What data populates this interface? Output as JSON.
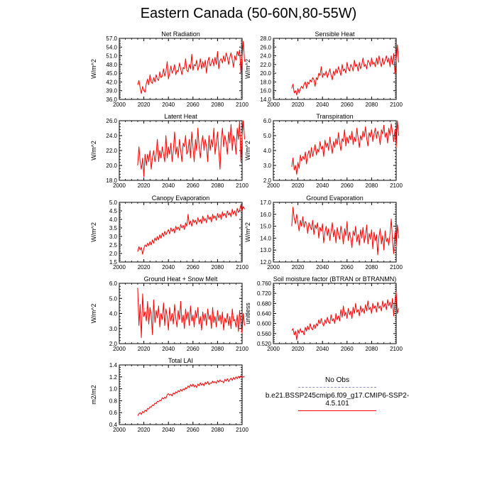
{
  "title": "Eastern Canada (50-60N,80-55W)",
  "legend": {
    "obs_label": "No Obs",
    "model_label": "b.e21.BSSP245cmip6.f09_g17.CMIP6-SSP2-4.5.101",
    "obs_color": "#8e8ecf",
    "model_color": "#ff0000"
  },
  "chart_data": [
    {
      "type": "line",
      "title": "Net Radiation",
      "ylabel": "W/m^2",
      "xlim": [
        2000,
        2100
      ],
      "ylim": [
        36.0,
        57.0
      ],
      "x_ticks": [
        2000,
        2020,
        2040,
        2060,
        2080,
        2100
      ],
      "y_ticks": [
        "36.0",
        "39.0",
        "42.0",
        "45.0",
        "48.0",
        "51.0",
        "54.0",
        "57.0"
      ],
      "series": [
        {
          "color": "#ff0000",
          "x_start": 2015,
          "values": [
            41.0,
            42.5,
            40.0,
            38.0,
            40.5,
            39.0,
            38.5,
            41.5,
            43.0,
            41.0,
            44.5,
            42.0,
            41.5,
            43.5,
            42.0,
            44.5,
            43.0,
            42.5,
            45.5,
            43.5,
            44.0,
            46.5,
            44.0,
            45.5,
            49.0,
            43.0,
            45.0,
            47.5,
            45.0,
            46.0,
            48.0,
            44.5,
            46.0,
            45.5,
            48.5,
            46.5,
            44.5,
            47.0,
            46.5,
            50.0,
            46.0,
            45.5,
            48.0,
            46.5,
            51.5,
            46.0,
            48.0,
            47.5,
            49.5,
            46.0,
            47.5,
            50.0,
            46.5,
            49.0,
            47.0,
            49.5,
            45.0,
            49.0,
            50.5,
            47.5,
            48.5,
            50.0,
            47.5,
            50.5,
            48.0,
            52.5,
            46.5,
            49.5,
            50.0,
            48.5,
            51.0,
            49.0,
            52.0,
            50.5,
            48.0,
            50.5,
            52.0,
            49.5,
            47.0,
            51.0,
            49.5,
            52.5,
            51.0,
            53.0,
            45.0,
            50.5,
            56.0,
            49.0
          ]
        }
      ]
    },
    {
      "type": "line",
      "title": "Sensible Heat",
      "ylabel": "W/m^2",
      "xlim": [
        2000,
        2100
      ],
      "ylim": [
        14.0,
        28.0
      ],
      "x_ticks": [
        2000,
        2020,
        2040,
        2060,
        2080,
        2100
      ],
      "y_ticks": [
        "14.0",
        "16.0",
        "18.0",
        "20.0",
        "22.0",
        "24.0",
        "26.0",
        "28.0"
      ],
      "series": [
        {
          "color": "#ff0000",
          "x_start": 2015,
          "values": [
            16.5,
            17.5,
            15.5,
            16.0,
            15.0,
            16.5,
            15.5,
            16.5,
            17.0,
            16.5,
            17.5,
            18.0,
            16.5,
            18.0,
            17.5,
            18.5,
            18.0,
            19.0,
            18.5,
            17.0,
            19.0,
            18.5,
            20.0,
            19.5,
            21.5,
            19.0,
            20.0,
            19.5,
            20.5,
            19.0,
            20.0,
            21.0,
            19.5,
            18.5,
            20.5,
            19.5,
            21.0,
            20.0,
            21.5,
            20.5,
            19.5,
            22.0,
            20.5,
            21.0,
            20.0,
            22.5,
            21.0,
            20.5,
            22.0,
            21.5,
            20.5,
            23.0,
            21.5,
            22.0,
            20.5,
            22.5,
            21.0,
            22.0,
            23.5,
            21.5,
            22.0,
            21.0,
            23.0,
            22.5,
            21.5,
            23.5,
            22.0,
            22.5,
            21.5,
            23.5,
            22.0,
            24.0,
            22.5,
            21.5,
            23.5,
            22.0,
            23.0,
            24.0,
            22.5,
            23.5,
            21.5,
            24.0,
            22.0,
            24.5,
            20.0,
            23.0,
            26.5,
            22.5
          ]
        }
      ]
    },
    {
      "type": "line",
      "title": "Latent Heat",
      "ylabel": "W/m^2",
      "xlim": [
        2000,
        2100
      ],
      "ylim": [
        18.0,
        26.0
      ],
      "x_ticks": [
        2000,
        2020,
        2040,
        2060,
        2080,
        2100
      ],
      "y_ticks": [
        "18.0",
        "20.0",
        "22.0",
        "24.0",
        "26.0"
      ],
      "series": [
        {
          "color": "#ff0000",
          "x_start": 2015,
          "values": [
            20.0,
            22.5,
            20.5,
            19.5,
            21.0,
            18.5,
            21.5,
            20.0,
            21.5,
            20.5,
            22.0,
            19.5,
            21.0,
            22.0,
            20.5,
            21.5,
            23.5,
            20.5,
            22.0,
            21.0,
            22.5,
            21.5,
            20.5,
            24.0,
            21.0,
            22.5,
            21.5,
            23.0,
            20.5,
            22.0,
            24.5,
            21.5,
            22.5,
            21.0,
            23.5,
            22.0,
            20.5,
            23.0,
            22.5,
            24.0,
            21.5,
            22.0,
            23.5,
            21.0,
            24.5,
            22.5,
            20.5,
            23.5,
            22.0,
            25.0,
            22.5,
            21.0,
            23.0,
            24.0,
            22.0,
            23.5,
            22.5,
            20.5,
            24.0,
            22.0,
            23.5,
            22.5,
            25.0,
            21.5,
            23.0,
            24.5,
            22.0,
            19.5,
            23.5,
            25.0,
            22.5,
            24.0,
            23.0,
            21.5,
            24.5,
            23.0,
            25.5,
            22.0,
            24.0,
            23.5,
            21.5,
            25.0,
            23.5,
            26.0,
            20.5,
            24.0,
            26.0,
            23.5
          ]
        }
      ]
    },
    {
      "type": "line",
      "title": "Transpiration",
      "ylabel": "W/m^2",
      "xlim": [
        2000,
        2100
      ],
      "ylim": [
        2.0,
        6.0
      ],
      "x_ticks": [
        2000,
        2020,
        2040,
        2060,
        2080,
        2100
      ],
      "y_ticks": [
        "2.0",
        "3.0",
        "4.0",
        "5.0",
        "6.0"
      ],
      "series": [
        {
          "color": "#ff0000",
          "x_start": 2015,
          "values": [
            2.9,
            3.5,
            2.7,
            3.0,
            2.4,
            3.2,
            2.8,
            3.7,
            3.3,
            3.6,
            3.4,
            3.9,
            3.1,
            3.7,
            4.0,
            3.5,
            4.2,
            3.6,
            4.0,
            4.4,
            3.7,
            4.1,
            3.9,
            4.6,
            4.1,
            4.3,
            3.6,
            4.7,
            4.2,
            4.5,
            4.0,
            4.9,
            4.3,
            3.8,
            4.6,
            4.2,
            4.8,
            4.4,
            5.2,
            4.5,
            4.0,
            4.8,
            4.6,
            5.4,
            4.3,
            4.9,
            4.5,
            5.0,
            4.7,
            5.3,
            4.4,
            4.9,
            4.6,
            5.5,
            4.8,
            4.2,
            5.0,
            4.7,
            5.3,
            4.9,
            5.6,
            4.8,
            4.3,
            5.2,
            4.9,
            5.4,
            4.6,
            5.1,
            5.5,
            4.8,
            5.3,
            5.0,
            4.4,
            5.4,
            5.1,
            5.7,
            4.9,
            5.2,
            4.5,
            5.5,
            5.0,
            5.8,
            5.2,
            4.6,
            5.4,
            4.2,
            6.0,
            5.0
          ]
        }
      ]
    },
    {
      "type": "line",
      "title": "Canopy Evaporation",
      "ylabel": "W/m^2",
      "xlim": [
        2000,
        2100
      ],
      "ylim": [
        1.5,
        5.0
      ],
      "x_ticks": [
        2000,
        2020,
        2040,
        2060,
        2080,
        2100
      ],
      "y_ticks": [
        "1.5",
        "2.0",
        "2.5",
        "3.0",
        "3.5",
        "4.0",
        "4.5",
        "5.0"
      ],
      "series": [
        {
          "color": "#ff0000",
          "x_start": 2015,
          "values": [
            2.1,
            2.4,
            2.2,
            2.35,
            1.95,
            2.3,
            2.5,
            2.4,
            2.6,
            2.45,
            2.7,
            2.5,
            2.8,
            2.6,
            2.9,
            2.75,
            3.0,
            2.8,
            3.1,
            2.9,
            3.2,
            3.0,
            3.3,
            3.1,
            3.25,
            3.4,
            3.15,
            3.5,
            3.3,
            3.45,
            3.2,
            3.6,
            3.4,
            3.55,
            3.35,
            3.7,
            3.5,
            3.65,
            3.4,
            3.8,
            3.6,
            4.3,
            3.7,
            3.9,
            3.6,
            4.0,
            3.8,
            3.95,
            3.7,
            4.1,
            3.85,
            4.0,
            3.75,
            4.2,
            3.9,
            4.05,
            3.8,
            4.25,
            4.0,
            4.15,
            3.85,
            4.3,
            4.05,
            4.2,
            3.95,
            4.35,
            4.1,
            4.3,
            4.0,
            4.45,
            4.2,
            4.35,
            4.1,
            4.5,
            4.25,
            4.4,
            4.15,
            4.6,
            4.3,
            4.5,
            4.2,
            4.65,
            4.4,
            4.55,
            4.85,
            4.5,
            4.75,
            4.6
          ]
        }
      ]
    },
    {
      "type": "line",
      "title": "Ground Evaporation",
      "ylabel": "W/m^2",
      "xlim": [
        2000,
        2100
      ],
      "ylim": [
        12.0,
        17.0
      ],
      "x_ticks": [
        2000,
        2020,
        2040,
        2060,
        2080,
        2100
      ],
      "y_ticks": [
        "12.0",
        "13.0",
        "14.0",
        "15.0",
        "16.0",
        "17.0"
      ],
      "series": [
        {
          "color": "#ff0000",
          "x_start": 2015,
          "values": [
            15.0,
            16.6,
            15.6,
            15.2,
            16.0,
            15.3,
            14.6,
            15.5,
            15.0,
            15.8,
            14.9,
            15.4,
            15.2,
            14.4,
            15.3,
            15.0,
            14.7,
            15.5,
            14.3,
            15.1,
            14.8,
            15.3,
            14.0,
            14.9,
            14.6,
            15.2,
            13.6,
            14.5,
            15.0,
            14.2,
            14.8,
            13.8,
            14.6,
            15.3,
            14.1,
            14.7,
            13.6,
            14.9,
            14.3,
            13.9,
            15.0,
            14.4,
            13.5,
            14.8,
            14.2,
            15.4,
            13.8,
            14.5,
            14.0,
            13.2,
            14.6,
            14.2,
            15.0,
            13.7,
            14.3,
            13.4,
            14.7,
            14.0,
            14.9,
            13.6,
            14.2,
            15.1,
            13.5,
            14.4,
            13.9,
            14.7,
            13.1,
            14.5,
            13.8,
            14.3,
            12.6,
            14.1,
            14.8,
            13.5,
            14.2,
            13.0,
            14.6,
            13.7,
            14.0,
            13.4,
            14.4,
            15.6,
            13.8,
            12.7,
            14.5,
            13.3,
            15.1,
            14.0
          ]
        }
      ]
    },
    {
      "type": "line",
      "title": "Ground Heat + Snow Melt",
      "ylabel": "W/m^2",
      "xlim": [
        2000,
        2100
      ],
      "ylim": [
        2.0,
        6.0
      ],
      "x_ticks": [
        2000,
        2020,
        2040,
        2060,
        2080,
        2100
      ],
      "y_ticks": [
        "2.0",
        "3.0",
        "4.0",
        "5.0",
        "6.0"
      ],
      "series": [
        {
          "color": "#ff0000",
          "x_start": 2015,
          "values": [
            5.7,
            3.2,
            4.6,
            2.4,
            5.3,
            3.8,
            4.1,
            3.5,
            4.8,
            3.3,
            4.4,
            3.9,
            2.6,
            4.9,
            3.4,
            4.2,
            3.7,
            4.5,
            3.1,
            4.0,
            3.6,
            4.7,
            3.2,
            4.3,
            3.8,
            2.9,
            4.4,
            3.5,
            4.0,
            3.3,
            4.6,
            3.7,
            3.1,
            4.2,
            3.6,
            4.8,
            3.4,
            3.9,
            3.0,
            4.3,
            3.6,
            4.1,
            3.2,
            4.5,
            3.5,
            3.9,
            3.1,
            4.2,
            3.7,
            4.4,
            3.3,
            3.8,
            2.9,
            4.1,
            3.5,
            4.0,
            3.2,
            4.3,
            3.6,
            3.9,
            3.0,
            4.4,
            3.4,
            3.8,
            3.1,
            4.2,
            3.5,
            3.9,
            3.3,
            4.1,
            2.9,
            3.7,
            3.4,
            4.0,
            3.2,
            3.8,
            3.0,
            4.3,
            3.5,
            3.6,
            3.1,
            3.9,
            2.8,
            4.2,
            3.3,
            2.7,
            4.0,
            3.2
          ]
        }
      ]
    },
    {
      "type": "line",
      "title": "Soil moisture factor (BTRAN or BTRANMN)",
      "ylabel": "unitless",
      "xlim": [
        2000,
        2100
      ],
      "ylim": [
        0.52,
        0.76
      ],
      "x_ticks": [
        2000,
        2020,
        2040,
        2060,
        2080,
        2100
      ],
      "y_ticks": [
        "0.520",
        "0.560",
        "0.600",
        "0.640",
        "0.680",
        "0.720",
        "0.760"
      ],
      "series": [
        {
          "color": "#ff0000",
          "x_start": 2015,
          "values": [
            0.572,
            0.58,
            0.555,
            0.57,
            0.535,
            0.575,
            0.56,
            0.58,
            0.565,
            0.57,
            0.555,
            0.585,
            0.57,
            0.59,
            0.575,
            0.6,
            0.58,
            0.575,
            0.595,
            0.58,
            0.6,
            0.59,
            0.615,
            0.6,
            0.62,
            0.6,
            0.59,
            0.615,
            0.6,
            0.625,
            0.605,
            0.6,
            0.635,
            0.61,
            0.62,
            0.6,
            0.64,
            0.615,
            0.63,
            0.61,
            0.655,
            0.625,
            0.67,
            0.63,
            0.645,
            0.62,
            0.66,
            0.635,
            0.65,
            0.62,
            0.665,
            0.64,
            0.68,
            0.645,
            0.655,
            0.63,
            0.67,
            0.645,
            0.66,
            0.64,
            0.675,
            0.65,
            0.69,
            0.655,
            0.665,
            0.64,
            0.68,
            0.66,
            0.67,
            0.645,
            0.685,
            0.66,
            0.67,
            0.65,
            0.69,
            0.665,
            0.68,
            0.655,
            0.695,
            0.67,
            0.685,
            0.66,
            0.7,
            0.63,
            0.69,
            0.725,
            0.64,
            0.66
          ]
        }
      ]
    },
    {
      "type": "line",
      "title": "Total LAI",
      "ylabel": "m2/m2",
      "xlim": [
        2000,
        2100
      ],
      "ylim": [
        0.4,
        1.4
      ],
      "x_ticks": [
        2000,
        2020,
        2040,
        2060,
        2080,
        2100
      ],
      "y_ticks": [
        "0.4",
        "0.6",
        "0.8",
        "1.0",
        "1.2",
        "1.4"
      ],
      "series": [
        {
          "color": "#ff0000",
          "x_start": 2015,
          "values": [
            0.55,
            0.58,
            0.6,
            0.57,
            0.62,
            0.6,
            0.64,
            0.62,
            0.67,
            0.66,
            0.7,
            0.69,
            0.73,
            0.72,
            0.76,
            0.75,
            0.79,
            0.78,
            0.81,
            0.8,
            0.85,
            0.83,
            0.86,
            0.84,
            0.9,
            0.92,
            0.89,
            0.91,
            0.88,
            0.93,
            0.91,
            0.95,
            0.93,
            0.97,
            0.95,
            0.99,
            0.96,
            1.0,
            0.98,
            1.02,
            1.0,
            1.05,
            1.02,
            1.07,
            1.04,
            1.08,
            1.03,
            1.06,
            1.02,
            1.08,
            1.05,
            1.1,
            1.06,
            1.09,
            1.05,
            1.11,
            1.08,
            1.12,
            1.07,
            1.1,
            1.09,
            1.13,
            1.1,
            1.12,
            1.09,
            1.14,
            1.11,
            1.15,
            1.12,
            1.13,
            1.1,
            1.16,
            1.13,
            1.17,
            1.12,
            1.15,
            1.18,
            1.14,
            1.19,
            1.16,
            1.2,
            1.17,
            1.21,
            1.18,
            1.22,
            1.19,
            1.2,
            1.21
          ]
        }
      ]
    }
  ]
}
